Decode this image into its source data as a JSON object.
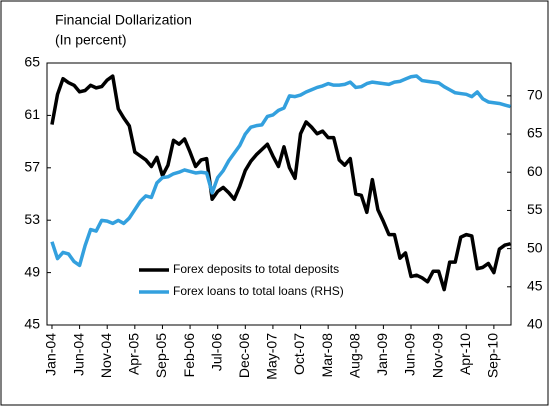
{
  "chart_data": {
    "type": "line",
    "title": "Financial Dollarization",
    "subtitle": "(In percent)",
    "categories": [
      "Jan-04",
      null,
      null,
      null,
      null,
      "Jun-04",
      null,
      null,
      null,
      null,
      "Nov-04",
      null,
      null,
      null,
      null,
      "Apr-05",
      null,
      null,
      null,
      null,
      "Sep-05",
      null,
      null,
      null,
      null,
      "Feb-06",
      null,
      null,
      null,
      null,
      "Jul-06",
      null,
      null,
      null,
      null,
      "Dec-06",
      null,
      null,
      null,
      null,
      "May-07",
      null,
      null,
      null,
      null,
      "Oct-07",
      null,
      null,
      null,
      null,
      "Mar-08",
      null,
      null,
      null,
      null,
      "Aug-08",
      null,
      null,
      null,
      null,
      "Jan-09",
      null,
      null,
      null,
      null,
      "Jun-09",
      null,
      null,
      null,
      null,
      "Nov-09",
      null,
      null,
      null,
      null,
      "Apr-10",
      null,
      null,
      null,
      null,
      "Sep-10",
      null,
      null,
      null
    ],
    "series": [
      {
        "name": "Forex deposits to total deposits",
        "color": "#000000",
        "values": [
          60.3,
          62.6,
          63.8,
          63.5,
          63.3,
          62.8,
          62.9,
          63.3,
          63.1,
          63.2,
          63.7,
          64.0,
          61.5,
          60.8,
          60.2,
          58.2,
          57.9,
          57.6,
          57.1,
          57.8,
          56.4,
          57.2,
          59.1,
          58.8,
          59.2,
          58.2,
          57.1,
          57.6,
          57.7,
          54.6,
          55.2,
          55.5,
          55.1,
          54.6,
          55.6,
          56.8,
          57.5,
          58.0,
          58.4,
          58.8,
          57.9,
          57.1,
          58.6,
          57.0,
          56.2,
          59.6,
          60.5,
          60.1,
          59.6,
          59.8,
          59.3,
          59.3,
          57.6,
          57.2,
          57.7,
          55.0,
          54.9,
          53.6,
          56.1,
          53.8,
          52.9,
          51.9,
          51.9,
          50.1,
          50.5,
          48.7,
          48.8,
          48.6,
          48.3,
          49.1,
          49.1,
          47.7,
          49.8,
          49.8,
          51.7,
          51.9,
          51.8,
          49.3,
          49.4,
          49.7,
          49.0,
          50.8,
          51.1,
          51.2
        ]
      },
      {
        "name": "Forex loans to total loans (RHS)",
        "color": "#33a0de",
        "axis": "y2",
        "values": [
          50.9,
          48.7,
          49.5,
          49.3,
          48.3,
          47.8,
          50.4,
          52.5,
          52.3,
          53.7,
          53.6,
          53.3,
          53.7,
          53.3,
          54.0,
          55.1,
          56.2,
          56.9,
          56.7,
          58.6,
          59.3,
          59.4,
          59.8,
          60.0,
          60.3,
          60.1,
          59.9,
          60.0,
          59.9,
          57.3,
          59.3,
          60.2,
          61.5,
          62.5,
          63.5,
          65.0,
          65.9,
          66.1,
          66.2,
          67.3,
          67.5,
          68.1,
          68.4,
          70.0,
          69.9,
          70.1,
          70.5,
          70.8,
          71.1,
          71.3,
          71.6,
          71.4,
          71.4,
          71.5,
          71.8,
          71.1,
          71.2,
          71.6,
          71.8,
          71.7,
          71.6,
          71.5,
          71.8,
          71.9,
          72.2,
          72.5,
          72.6,
          72.0,
          71.9,
          71.8,
          71.7,
          71.2,
          70.8,
          70.4,
          70.3,
          70.2,
          69.9,
          70.5,
          69.6,
          69.2,
          69.1,
          69.0,
          68.8,
          68.6
        ]
      }
    ],
    "ylim": [
      45,
      65
    ],
    "yticks": [
      45,
      49,
      53,
      57,
      61,
      65
    ],
    "y2lim": [
      40,
      74.3
    ],
    "y2ticks": [
      40,
      45,
      50,
      55,
      60,
      65,
      70
    ],
    "grid": false,
    "legend": "lower center"
  }
}
